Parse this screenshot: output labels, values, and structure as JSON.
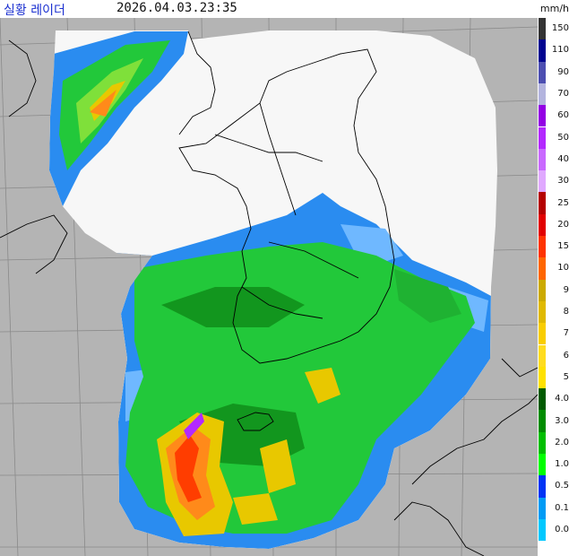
{
  "header": {
    "title": "실황 레이더",
    "timestamp": "2026.04.03.23:35"
  },
  "legend": {
    "unit": "mm/h",
    "levels": [
      {
        "label": "150",
        "color": "#333333"
      },
      {
        "label": "110",
        "color": "#000390"
      },
      {
        "label": "90",
        "color": "#4c4eb1"
      },
      {
        "label": "70",
        "color": "#b3b4de"
      },
      {
        "label": "60",
        "color": "#9300e4"
      },
      {
        "label": "50",
        "color": "#b329ff"
      },
      {
        "label": "40",
        "color": "#c969ff"
      },
      {
        "label": "30",
        "color": "#e0a9ff"
      },
      {
        "label": "25",
        "color": "#b40000"
      },
      {
        "label": "20",
        "color": "#e10000"
      },
      {
        "label": "15",
        "color": "#ff3300"
      },
      {
        "label": "10",
        "color": "#ff6600"
      },
      {
        "label": "9",
        "color": "#ccaa00"
      },
      {
        "label": "8",
        "color": "#e0b900"
      },
      {
        "label": "7",
        "color": "#f9cd00"
      },
      {
        "label": "6",
        "color": "#ffdc1f"
      },
      {
        "label": "5",
        "color": "#ffe100"
      },
      {
        "label": "4.0",
        "color": "#005a00"
      },
      {
        "label": "3.0",
        "color": "#008c00"
      },
      {
        "label": "2.0",
        "color": "#00be00"
      },
      {
        "label": "1.0",
        "color": "#00ff00"
      },
      {
        "label": "0.5",
        "color": "#0033f5"
      },
      {
        "label": "0.1",
        "color": "#009bf5"
      },
      {
        "label": "0.0",
        "color": "#00c8ff"
      }
    ]
  },
  "colors": {
    "background": "#b4b4b4",
    "radar_coverage": "#f7f7f7",
    "coastline": "#000000",
    "grid": "#7a7a7a"
  }
}
